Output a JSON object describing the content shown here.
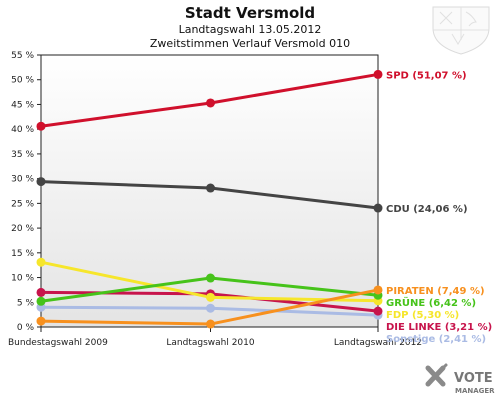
{
  "chart_data": {
    "type": "line",
    "title": "Stadt Versmold",
    "subtitle_1": "Landtagswahl 13.05.2012",
    "subtitle_2": "Zweitstimmen Verlauf Versmold 010",
    "categories": [
      "Bundestagswahl 2009",
      "Landtagswahl 2010",
      "Landtagswahl 2012"
    ],
    "ylim": [
      0,
      55
    ],
    "yticks": [
      0,
      5,
      10,
      15,
      20,
      25,
      30,
      35,
      40,
      45,
      50,
      55
    ],
    "ytick_labels": [
      "0 %",
      "5 %",
      "10 %",
      "15 %",
      "20 %",
      "25 %",
      "30 %",
      "35 %",
      "40 %",
      "45 %",
      "50 %",
      "55 %"
    ],
    "grid": false,
    "series": [
      {
        "name": "SPD",
        "values": [
          40.6,
          45.3,
          51.07
        ],
        "color": "#d0102c",
        "end_label": "SPD (51,07 %)"
      },
      {
        "name": "CDU",
        "values": [
          29.4,
          28.1,
          24.06
        ],
        "color": "#444444",
        "end_label": "CDU (24,06 %)"
      },
      {
        "name": "PIRATEN",
        "values": [
          1.2,
          0.6,
          7.49
        ],
        "color": "#f7901e",
        "end_label": "PIRATEN (7,49 %)"
      },
      {
        "name": "GRÜNE",
        "values": [
          5.2,
          9.9,
          6.42
        ],
        "color": "#46c31a",
        "end_label": "GRÜNE (6,42 %)"
      },
      {
        "name": "FDP",
        "values": [
          13.1,
          6.0,
          5.3
        ],
        "color": "#f6e62b",
        "end_label": "FDP (5,30 %)"
      },
      {
        "name": "DIE LINKE",
        "values": [
          7.0,
          6.7,
          3.21
        ],
        "color": "#c7144c",
        "end_label": "DIE LINKE (3,21 %)"
      },
      {
        "name": "Sonstige",
        "values": [
          4.0,
          3.8,
          2.41
        ],
        "color": "#aabbe4",
        "end_label": "Sonstige (2,41 %)"
      }
    ]
  },
  "branding": {
    "logo_line1": "VOTE",
    "logo_line2": "MANAGER",
    "crest_icon": "nrw-coat-of-arms-icon"
  }
}
